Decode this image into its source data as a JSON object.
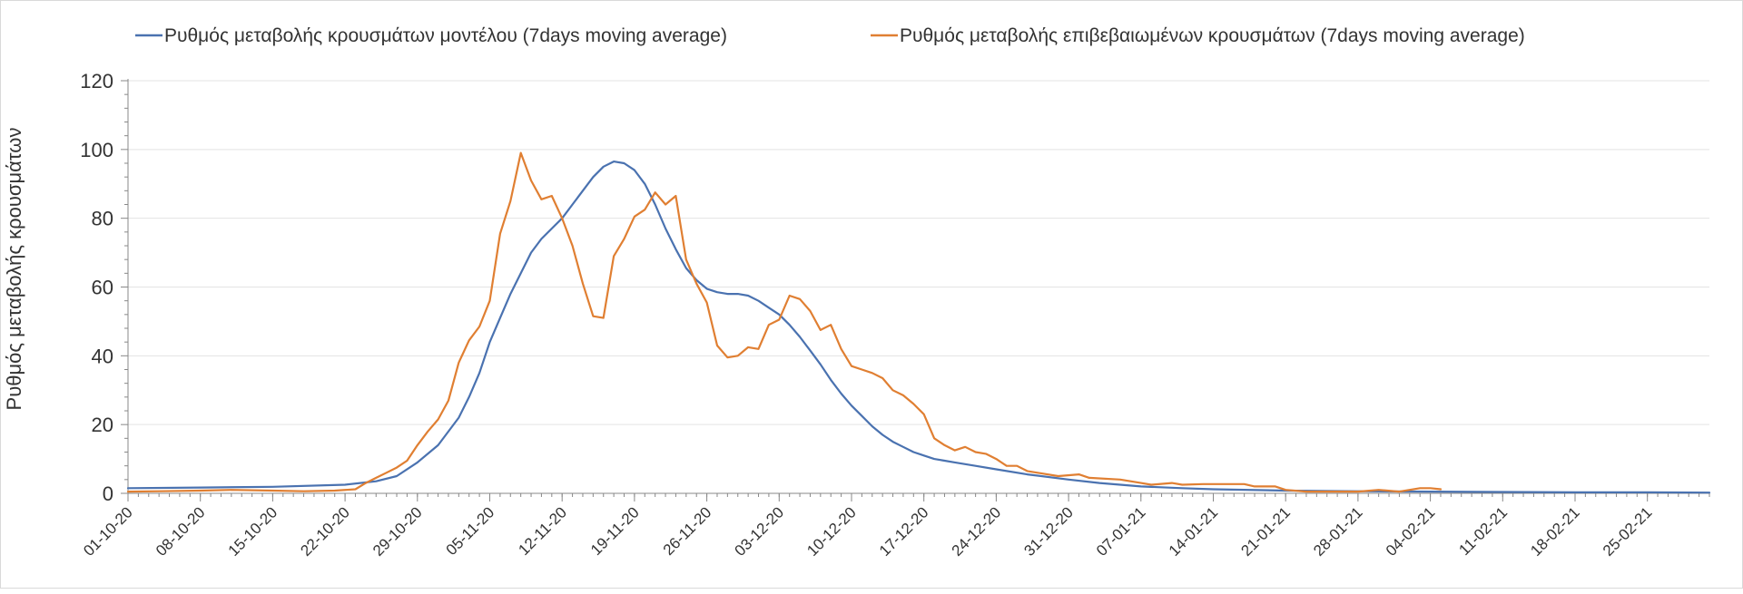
{
  "colors": {
    "model": "#4a72b0",
    "confirmed": "#e07f32",
    "grid": "#e3e3e3",
    "axis": "#888888",
    "text": "#333333"
  },
  "chart_data": {
    "type": "line",
    "ylabel": "Ρυθμός μεταβολής κρουσμάτων",
    "xlabel": "",
    "ylim": [
      0,
      120
    ],
    "yticks": [
      0,
      20,
      40,
      60,
      80,
      100,
      120
    ],
    "xlim": [
      "01-10-20",
      "03-03-21"
    ],
    "xtick_labels": [
      "01-10-20",
      "08-10-20",
      "15-10-20",
      "22-10-20",
      "29-10-20",
      "05-11-20",
      "12-11-20",
      "19-11-20",
      "26-11-20",
      "03-12-20",
      "10-12-20",
      "17-12-20",
      "24-12-20",
      "31-12-20",
      "07-01-21",
      "14-01-21",
      "21-01-21",
      "28-01-21",
      "04-02-21",
      "11-02-21",
      "18-02-21",
      "25-02-21"
    ],
    "grid": true,
    "legend": "top",
    "series": [
      {
        "name": "Ρυθμός μεταβολής κρουσμάτων μοντέλου (7days moving average)",
        "color": "#4a72b0",
        "points": [
          [
            "01-10-20",
            1.5
          ],
          [
            "08-10-20",
            1.7
          ],
          [
            "15-10-20",
            1.9
          ],
          [
            "22-10-20",
            2.5
          ],
          [
            "25-10-20",
            3.5
          ],
          [
            "27-10-20",
            5
          ],
          [
            "29-10-20",
            9
          ],
          [
            "31-10-20",
            14
          ],
          [
            "02-11-20",
            22
          ],
          [
            "03-11-20",
            28
          ],
          [
            "04-11-20",
            35
          ],
          [
            "05-11-20",
            44
          ],
          [
            "06-11-20",
            51
          ],
          [
            "07-11-20",
            58
          ],
          [
            "08-11-20",
            64
          ],
          [
            "09-11-20",
            70
          ],
          [
            "10-11-20",
            74
          ],
          [
            "11-11-20",
            77
          ],
          [
            "12-11-20",
            80
          ],
          [
            "13-11-20",
            84
          ],
          [
            "14-11-20",
            88
          ],
          [
            "15-11-20",
            92
          ],
          [
            "16-11-20",
            95
          ],
          [
            "17-11-20",
            96.5
          ],
          [
            "18-11-20",
            96
          ],
          [
            "19-11-20",
            94
          ],
          [
            "20-11-20",
            90
          ],
          [
            "21-11-20",
            84
          ],
          [
            "22-11-20",
            77
          ],
          [
            "23-11-20",
            71
          ],
          [
            "24-11-20",
            65.5
          ],
          [
            "25-11-20",
            62
          ],
          [
            "26-11-20",
            59.5
          ],
          [
            "27-11-20",
            58.5
          ],
          [
            "28-11-20",
            58
          ],
          [
            "29-11-20",
            58
          ],
          [
            "30-11-20",
            57.5
          ],
          [
            "01-12-20",
            56
          ],
          [
            "02-12-20",
            54
          ],
          [
            "03-12-20",
            52
          ],
          [
            "04-12-20",
            49
          ],
          [
            "05-12-20",
            45.5
          ],
          [
            "06-12-20",
            41.5
          ],
          [
            "07-12-20",
            37.5
          ],
          [
            "08-12-20",
            33
          ],
          [
            "09-12-20",
            29
          ],
          [
            "10-12-20",
            25.5
          ],
          [
            "11-12-20",
            22.5
          ],
          [
            "12-12-20",
            19.5
          ],
          [
            "13-12-20",
            17
          ],
          [
            "14-12-20",
            15
          ],
          [
            "15-12-20",
            13.5
          ],
          [
            "16-12-20",
            12
          ],
          [
            "17-12-20",
            11
          ],
          [
            "18-12-20",
            10
          ],
          [
            "19-12-20",
            9.5
          ],
          [
            "20-12-20",
            9
          ],
          [
            "22-12-20",
            8
          ],
          [
            "24-12-20",
            7
          ],
          [
            "27-12-20",
            5.5
          ],
          [
            "31-12-20",
            4
          ],
          [
            "03-01-21",
            3
          ],
          [
            "07-01-21",
            2
          ],
          [
            "11-01-21",
            1.5
          ],
          [
            "14-01-21",
            1.2
          ],
          [
            "21-01-21",
            0.8
          ],
          [
            "28-01-21",
            0.6
          ],
          [
            "04-02-21",
            0.5
          ],
          [
            "11-02-21",
            0.4
          ],
          [
            "18-02-21",
            0.3
          ],
          [
            "25-02-21",
            0.3
          ],
          [
            "03-03-21",
            0.2
          ]
        ]
      },
      {
        "name": "Ρυθμός μεταβολής επιβεβαιωμένων κρουσμάτων (7days moving average)",
        "color": "#e07f32",
        "points": [
          [
            "01-10-20",
            0.5
          ],
          [
            "04-10-20",
            0.6
          ],
          [
            "08-10-20",
            0.8
          ],
          [
            "11-10-20",
            1
          ],
          [
            "15-10-20",
            0.8
          ],
          [
            "18-10-20",
            0.6
          ],
          [
            "21-10-20",
            0.8
          ],
          [
            "23-10-20",
            1.2
          ],
          [
            "24-10-20",
            3
          ],
          [
            "25-10-20",
            4.5
          ],
          [
            "26-10-20",
            6
          ],
          [
            "27-10-20",
            7.5
          ],
          [
            "28-10-20",
            9.5
          ],
          [
            "29-10-20",
            14
          ],
          [
            "30-10-20",
            18
          ],
          [
            "31-10-20",
            21.5
          ],
          [
            "01-11-20",
            27
          ],
          [
            "02-11-20",
            38
          ],
          [
            "03-11-20",
            44.5
          ],
          [
            "04-11-20",
            48.5
          ],
          [
            "05-11-20",
            56
          ],
          [
            "06-11-20",
            75.5
          ],
          [
            "07-11-20",
            85
          ],
          [
            "08-11-20",
            99
          ],
          [
            "09-11-20",
            91
          ],
          [
            "10-11-20",
            85.5
          ],
          [
            "11-11-20",
            86.5
          ],
          [
            "12-11-20",
            80
          ],
          [
            "13-11-20",
            72
          ],
          [
            "14-11-20",
            61
          ],
          [
            "15-11-20",
            51.5
          ],
          [
            "16-11-20",
            51
          ],
          [
            "17-11-20",
            69
          ],
          [
            "18-11-20",
            74
          ],
          [
            "19-11-20",
            80.5
          ],
          [
            "20-11-20",
            82.5
          ],
          [
            "21-11-20",
            87.5
          ],
          [
            "22-11-20",
            84
          ],
          [
            "23-11-20",
            86.5
          ],
          [
            "24-11-20",
            68
          ],
          [
            "25-11-20",
            61
          ],
          [
            "26-11-20",
            55.5
          ],
          [
            "27-11-20",
            43
          ],
          [
            "28-11-20",
            39.5
          ],
          [
            "29-11-20",
            40
          ],
          [
            "30-11-20",
            42.5
          ],
          [
            "01-12-20",
            42
          ],
          [
            "02-12-20",
            49
          ],
          [
            "03-12-20",
            50.5
          ],
          [
            "04-12-20",
            57.5
          ],
          [
            "05-12-20",
            56.5
          ],
          [
            "06-12-20",
            53
          ],
          [
            "07-12-20",
            47.5
          ],
          [
            "08-12-20",
            49
          ],
          [
            "09-12-20",
            42
          ],
          [
            "10-12-20",
            37
          ],
          [
            "11-12-20",
            36
          ],
          [
            "12-12-20",
            35
          ],
          [
            "13-12-20",
            33.5
          ],
          [
            "14-12-20",
            30
          ],
          [
            "15-12-20",
            28.5
          ],
          [
            "16-12-20",
            26
          ],
          [
            "17-12-20",
            23
          ],
          [
            "18-12-20",
            16
          ],
          [
            "19-12-20",
            14
          ],
          [
            "20-12-20",
            12.5
          ],
          [
            "21-12-20",
            13.5
          ],
          [
            "22-12-20",
            12
          ],
          [
            "23-12-20",
            11.5
          ],
          [
            "24-12-20",
            10
          ],
          [
            "25-12-20",
            8
          ],
          [
            "26-12-20",
            8
          ],
          [
            "27-12-20",
            6.5
          ],
          [
            "28-12-20",
            6
          ],
          [
            "30-12-20",
            5
          ],
          [
            "01-01-21",
            5.5
          ],
          [
            "02-01-21",
            4.5
          ],
          [
            "05-01-21",
            4
          ],
          [
            "07-01-21",
            3
          ],
          [
            "08-01-21",
            2.5
          ],
          [
            "10-01-21",
            3
          ],
          [
            "11-01-21",
            2.5
          ],
          [
            "13-01-21",
            2.7
          ],
          [
            "17-01-21",
            2.7
          ],
          [
            "18-01-21",
            2
          ],
          [
            "20-01-21",
            2
          ],
          [
            "21-01-21",
            1
          ],
          [
            "23-01-21",
            0.5
          ],
          [
            "28-01-21",
            0.5
          ],
          [
            "30-01-21",
            1
          ],
          [
            "01-02-21",
            0.5
          ],
          [
            "03-02-21",
            1.5
          ],
          [
            "04-02-21",
            1.5
          ],
          [
            "05-02-21",
            1.2
          ]
        ]
      }
    ]
  }
}
